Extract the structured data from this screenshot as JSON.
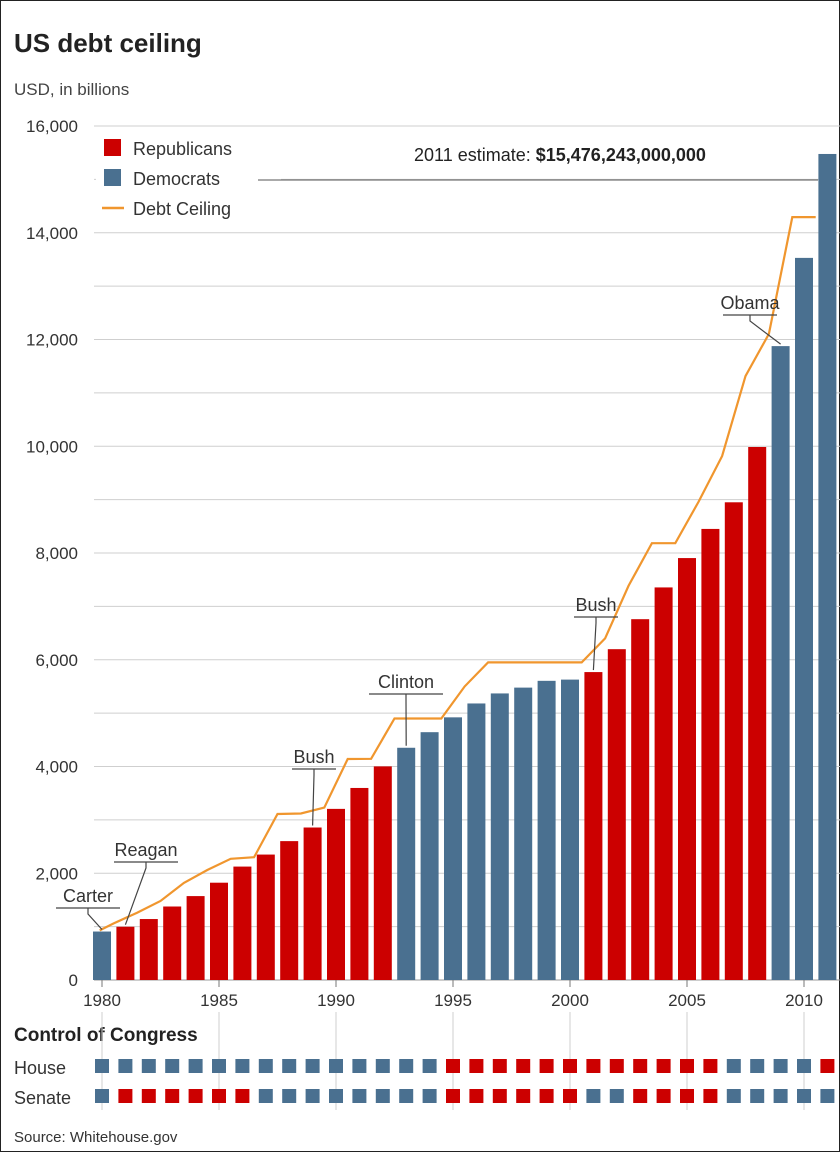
{
  "chart_data": {
    "type": "bar",
    "title": "US debt ceiling",
    "ylabel": "USD, in billions",
    "ylim": [
      0,
      16000
    ],
    "y_ticks": [
      "0",
      "2,000",
      "4,000",
      "6,000",
      "8,000",
      "10,000",
      "12,000",
      "14,000",
      "16,000"
    ],
    "x_tick_labels": [
      {
        "year": 1980,
        "label": "1980"
      },
      {
        "year": 1985,
        "label": "1985"
      },
      {
        "year": 1990,
        "label": "1990"
      },
      {
        "year": 1995,
        "label": "1995"
      },
      {
        "year": 2000,
        "label": "2000"
      },
      {
        "year": 2005,
        "label": "2005"
      },
      {
        "year": 2010,
        "label": "2010"
      }
    ],
    "legend": [
      {
        "key": "R",
        "label": "Republicans",
        "color": "#cc0000",
        "kind": "box"
      },
      {
        "key": "D",
        "label": "Democrats",
        "color": "#4a7090",
        "kind": "box"
      },
      {
        "key": "ceiling",
        "label": "Debt Ceiling",
        "color": "#f0962e",
        "kind": "line"
      }
    ],
    "bars": [
      {
        "year": 1980,
        "value": 908,
        "party": "D"
      },
      {
        "year": 1981,
        "value": 998,
        "party": "R"
      },
      {
        "year": 1982,
        "value": 1142,
        "party": "R"
      },
      {
        "year": 1983,
        "value": 1377,
        "party": "R"
      },
      {
        "year": 1984,
        "value": 1572,
        "party": "R"
      },
      {
        "year": 1985,
        "value": 1823,
        "party": "R"
      },
      {
        "year": 1986,
        "value": 2125,
        "party": "R"
      },
      {
        "year": 1987,
        "value": 2350,
        "party": "R"
      },
      {
        "year": 1988,
        "value": 2602,
        "party": "R"
      },
      {
        "year": 1989,
        "value": 2857,
        "party": "R"
      },
      {
        "year": 1990,
        "value": 3206,
        "party": "R"
      },
      {
        "year": 1991,
        "value": 3598,
        "party": "R"
      },
      {
        "year": 1992,
        "value": 4002,
        "party": "R"
      },
      {
        "year": 1993,
        "value": 4351,
        "party": "D"
      },
      {
        "year": 1994,
        "value": 4643,
        "party": "D"
      },
      {
        "year": 1995,
        "value": 4921,
        "party": "D"
      },
      {
        "year": 1996,
        "value": 5181,
        "party": "D"
      },
      {
        "year": 1997,
        "value": 5369,
        "party": "D"
      },
      {
        "year": 1998,
        "value": 5478,
        "party": "D"
      },
      {
        "year": 1999,
        "value": 5605,
        "party": "D"
      },
      {
        "year": 2000,
        "value": 5628,
        "party": "D"
      },
      {
        "year": 2001,
        "value": 5769,
        "party": "R"
      },
      {
        "year": 2002,
        "value": 6198,
        "party": "R"
      },
      {
        "year": 2003,
        "value": 6760,
        "party": "R"
      },
      {
        "year": 2004,
        "value": 7355,
        "party": "R"
      },
      {
        "year": 2005,
        "value": 7905,
        "party": "R"
      },
      {
        "year": 2006,
        "value": 8451,
        "party": "R"
      },
      {
        "year": 2007,
        "value": 8950,
        "party": "R"
      },
      {
        "year": 2008,
        "value": 9986,
        "party": "R"
      },
      {
        "year": 2009,
        "value": 11876,
        "party": "D"
      },
      {
        "year": 2010,
        "value": 13529,
        "party": "D"
      },
      {
        "year": 2011,
        "value": 15476,
        "party": "D"
      }
    ],
    "ceiling": [
      {
        "year": 1979.9,
        "value": 930
      },
      {
        "year": 1980.5,
        "value": 1060
      },
      {
        "year": 1981.5,
        "value": 1260
      },
      {
        "year": 1982.5,
        "value": 1480
      },
      {
        "year": 1983.5,
        "value": 1820
      },
      {
        "year": 1984.5,
        "value": 2060
      },
      {
        "year": 1985.5,
        "value": 2270
      },
      {
        "year": 1986.5,
        "value": 2300
      },
      {
        "year": 1987.5,
        "value": 3110
      },
      {
        "year": 1988.5,
        "value": 3120
      },
      {
        "year": 1989.5,
        "value": 3230
      },
      {
        "year": 1990.5,
        "value": 4140
      },
      {
        "year": 1991.5,
        "value": 4145
      },
      {
        "year": 1992.5,
        "value": 4900
      },
      {
        "year": 1993.5,
        "value": 4900
      },
      {
        "year": 1994.5,
        "value": 4900
      },
      {
        "year": 1995.5,
        "value": 5500
      },
      {
        "year": 1996.5,
        "value": 5950
      },
      {
        "year": 1997.5,
        "value": 5950
      },
      {
        "year": 1998.5,
        "value": 5950
      },
      {
        "year": 1999.5,
        "value": 5950
      },
      {
        "year": 2000.5,
        "value": 5950
      },
      {
        "year": 2001.5,
        "value": 6400
      },
      {
        "year": 2002.5,
        "value": 7384
      },
      {
        "year": 2003.5,
        "value": 8184
      },
      {
        "year": 2004.5,
        "value": 8184
      },
      {
        "year": 2005.5,
        "value": 8965
      },
      {
        "year": 2006.5,
        "value": 9815
      },
      {
        "year": 2007.5,
        "value": 11315
      },
      {
        "year": 2008.5,
        "value": 12104
      },
      {
        "year": 2009.5,
        "value": 14294
      },
      {
        "year": 2010.5,
        "value": 14294
      }
    ],
    "annotation": {
      "prefix": "2011 estimate: ",
      "value": "$15,476,243,000,000"
    },
    "presidents": [
      {
        "name": "Carter",
        "year": 1980
      },
      {
        "name": "Reagan",
        "year": 1981
      },
      {
        "name": "Bush",
        "year": 1989
      },
      {
        "name": "Clinton",
        "year": 1993
      },
      {
        "name": "Bush",
        "year": 2001
      },
      {
        "name": "Obama",
        "year": 2009
      }
    ]
  },
  "congress": {
    "title": "Control of Congress",
    "house_label": "House",
    "senate_label": "Senate",
    "house": [
      {
        "year": 1980,
        "party": "D"
      },
      {
        "year": 1981,
        "party": "D"
      },
      {
        "year": 1982,
        "party": "D"
      },
      {
        "year": 1983,
        "party": "D"
      },
      {
        "year": 1984,
        "party": "D"
      },
      {
        "year": 1985,
        "party": "D"
      },
      {
        "year": 1986,
        "party": "D"
      },
      {
        "year": 1987,
        "party": "D"
      },
      {
        "year": 1988,
        "party": "D"
      },
      {
        "year": 1989,
        "party": "D"
      },
      {
        "year": 1990,
        "party": "D"
      },
      {
        "year": 1991,
        "party": "D"
      },
      {
        "year": 1992,
        "party": "D"
      },
      {
        "year": 1993,
        "party": "D"
      },
      {
        "year": 1994,
        "party": "D"
      },
      {
        "year": 1995,
        "party": "R"
      },
      {
        "year": 1996,
        "party": "R"
      },
      {
        "year": 1997,
        "party": "R"
      },
      {
        "year": 1998,
        "party": "R"
      },
      {
        "year": 1999,
        "party": "R"
      },
      {
        "year": 2000,
        "party": "R"
      },
      {
        "year": 2001,
        "party": "R"
      },
      {
        "year": 2002,
        "party": "R"
      },
      {
        "year": 2003,
        "party": "R"
      },
      {
        "year": 2004,
        "party": "R"
      },
      {
        "year": 2005,
        "party": "R"
      },
      {
        "year": 2006,
        "party": "R"
      },
      {
        "year": 2007,
        "party": "D"
      },
      {
        "year": 2008,
        "party": "D"
      },
      {
        "year": 2009,
        "party": "D"
      },
      {
        "year": 2010,
        "party": "D"
      },
      {
        "year": 2011,
        "party": "R"
      }
    ],
    "senate": [
      {
        "year": 1980,
        "party": "D"
      },
      {
        "year": 1981,
        "party": "R"
      },
      {
        "year": 1982,
        "party": "R"
      },
      {
        "year": 1983,
        "party": "R"
      },
      {
        "year": 1984,
        "party": "R"
      },
      {
        "year": 1985,
        "party": "R"
      },
      {
        "year": 1986,
        "party": "R"
      },
      {
        "year": 1987,
        "party": "D"
      },
      {
        "year": 1988,
        "party": "D"
      },
      {
        "year": 1989,
        "party": "D"
      },
      {
        "year": 1990,
        "party": "D"
      },
      {
        "year": 1991,
        "party": "D"
      },
      {
        "year": 1992,
        "party": "D"
      },
      {
        "year": 1993,
        "party": "D"
      },
      {
        "year": 1994,
        "party": "D"
      },
      {
        "year": 1995,
        "party": "R"
      },
      {
        "year": 1996,
        "party": "R"
      },
      {
        "year": 1997,
        "party": "R"
      },
      {
        "year": 1998,
        "party": "R"
      },
      {
        "year": 1999,
        "party": "R"
      },
      {
        "year": 2000,
        "party": "R"
      },
      {
        "year": 2001,
        "party": "D"
      },
      {
        "year": 2002,
        "party": "D"
      },
      {
        "year": 2003,
        "party": "R"
      },
      {
        "year": 2004,
        "party": "R"
      },
      {
        "year": 2005,
        "party": "R"
      },
      {
        "year": 2006,
        "party": "R"
      },
      {
        "year": 2007,
        "party": "D"
      },
      {
        "year": 2008,
        "party": "D"
      },
      {
        "year": 2009,
        "party": "D"
      },
      {
        "year": 2010,
        "party": "D"
      },
      {
        "year": 2011,
        "party": "D"
      }
    ]
  },
  "source": "Source: Whitehouse.gov",
  "colors": {
    "republican": "#cc0000",
    "democrat": "#4a7090",
    "ceiling": "#f0962e",
    "grid": "#cfcfcf"
  }
}
